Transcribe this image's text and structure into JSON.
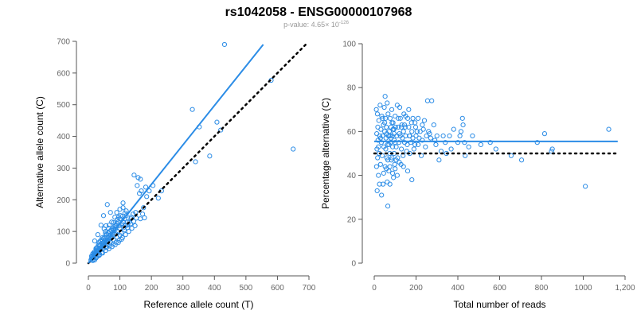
{
  "header": {
    "title": "rs1042058 - ENSG00000107968",
    "pvalue_prefix": "p-value: 4.65× 10",
    "pvalue_exp": "-126"
  },
  "colors": {
    "accent": "#2b8ce6",
    "reference": "#000000"
  },
  "chart_data": [
    {
      "type": "scatter",
      "xlabel": "Reference allele count (T)",
      "ylabel": "Alternative allele count (C)",
      "xlim": [
        0,
        700
      ],
      "ylim": [
        0,
        700
      ],
      "xticks": [
        0,
        100,
        200,
        300,
        400,
        500,
        600,
        700
      ],
      "xtick_labels": [
        "0",
        "100",
        "200",
        "300",
        "400",
        "500",
        "600",
        "700"
      ],
      "yticks": [
        0,
        100,
        200,
        300,
        400,
        500,
        600,
        700
      ],
      "ytick_labels": [
        "0",
        "100",
        "200",
        "300",
        "400",
        "500",
        "600",
        "700"
      ],
      "fit_line": {
        "x": [
          0,
          555
        ],
        "y": [
          0,
          690
        ]
      },
      "reference_line": {
        "x": [
          0,
          690
        ],
        "y": [
          0,
          690
        ]
      },
      "points": [
        [
          432,
          690
        ],
        [
          580,
          577
        ],
        [
          650,
          360
        ],
        [
          330,
          485
        ],
        [
          352,
          430
        ],
        [
          408,
          445
        ],
        [
          420,
          420
        ],
        [
          385,
          338
        ],
        [
          340,
          320
        ],
        [
          145,
          278
        ],
        [
          158,
          270
        ],
        [
          165,
          265
        ],
        [
          155,
          245
        ],
        [
          182,
          240
        ],
        [
          193,
          228
        ],
        [
          205,
          245
        ],
        [
          232,
          228
        ],
        [
          222,
          205
        ],
        [
          162,
          220
        ],
        [
          168,
          228
        ],
        [
          185,
          210
        ],
        [
          175,
          175
        ],
        [
          172,
          155
        ],
        [
          178,
          143
        ],
        [
          165,
          140
        ],
        [
          150,
          160
        ],
        [
          142,
          155
        ],
        [
          135,
          140
        ],
        [
          130,
          130
        ],
        [
          125,
          120
        ],
        [
          118,
          118
        ],
        [
          112,
          112
        ],
        [
          100,
          110
        ],
        [
          95,
          130
        ],
        [
          90,
          125
        ],
        [
          85,
          118
        ],
        [
          80,
          105
        ],
        [
          75,
          96
        ],
        [
          70,
          88
        ],
        [
          65,
          80
        ],
        [
          60,
          72
        ],
        [
          55,
          66
        ],
        [
          50,
          60
        ],
        [
          45,
          56
        ],
        [
          40,
          48
        ],
        [
          35,
          44
        ],
        [
          30,
          38
        ],
        [
          25,
          32
        ],
        [
          22,
          28
        ],
        [
          20,
          24
        ],
        [
          18,
          20
        ],
        [
          15,
          18
        ],
        [
          12,
          15
        ],
        [
          10,
          22
        ],
        [
          14,
          30
        ],
        [
          20,
          36
        ],
        [
          28,
          50
        ],
        [
          32,
          60
        ],
        [
          38,
          70
        ],
        [
          42,
          74
        ],
        [
          48,
          78
        ],
        [
          52,
          82
        ],
        [
          58,
          90
        ],
        [
          62,
          95
        ],
        [
          68,
          100
        ],
        [
          72,
          104
        ],
        [
          78,
          110
        ],
        [
          82,
          115
        ],
        [
          88,
          120
        ],
        [
          92,
          138
        ],
        [
          96,
          145
        ],
        [
          102,
          150
        ],
        [
          108,
          148
        ],
        [
          110,
          130
        ],
        [
          115,
          140
        ],
        [
          120,
          150
        ],
        [
          105,
          125
        ],
        [
          98,
          118
        ],
        [
          86,
          108
        ],
        [
          76,
          92
        ],
        [
          66,
          84
        ],
        [
          56,
          74
        ],
        [
          46,
          64
        ],
        [
          36,
          54
        ],
        [
          26,
          42
        ],
        [
          16,
          26
        ],
        [
          24,
          46
        ],
        [
          34,
          66
        ],
        [
          44,
          80
        ],
        [
          54,
          100
        ],
        [
          64,
          110
        ],
        [
          74,
          130
        ],
        [
          84,
          145
        ],
        [
          70,
          160
        ],
        [
          60,
          185
        ],
        [
          48,
          150
        ],
        [
          40,
          120
        ],
        [
          30,
          90
        ],
        [
          20,
          70
        ],
        [
          28,
          40
        ],
        [
          38,
          42
        ],
        [
          48,
          46
        ],
        [
          58,
          50
        ],
        [
          68,
          54
        ],
        [
          78,
          60
        ],
        [
          88,
          66
        ],
        [
          98,
          72
        ],
        [
          108,
          80
        ],
        [
          118,
          90
        ],
        [
          128,
          100
        ],
        [
          138,
          110
        ],
        [
          148,
          118
        ],
        [
          92,
          100
        ],
        [
          82,
          90
        ],
        [
          72,
          80
        ],
        [
          62,
          70
        ],
        [
          52,
          62
        ],
        [
          42,
          52
        ],
        [
          32,
          42
        ],
        [
          22,
          32
        ],
        [
          12,
          20
        ],
        [
          15,
          12
        ],
        [
          25,
          18
        ],
        [
          35,
          25
        ],
        [
          45,
          32
        ],
        [
          55,
          40
        ],
        [
          65,
          45
        ],
        [
          75,
          52
        ],
        [
          85,
          58
        ],
        [
          95,
          65
        ],
        [
          105,
          75
        ],
        [
          88,
          92
        ],
        [
          78,
          84
        ],
        [
          68,
          76
        ],
        [
          58,
          68
        ],
        [
          48,
          58
        ],
        [
          38,
          48
        ],
        [
          28,
          36
        ],
        [
          18,
          26
        ],
        [
          10,
          14
        ],
        [
          8,
          10
        ],
        [
          50,
          108
        ],
        [
          56,
          118
        ],
        [
          90,
          160
        ],
        [
          100,
          170
        ],
        [
          110,
          175
        ],
        [
          120,
          165
        ],
        [
          110,
          190
        ],
        [
          42,
          32
        ],
        [
          36,
          28
        ],
        [
          30,
          22
        ],
        [
          24,
          16
        ],
        [
          20,
          10
        ],
        [
          14,
          8
        ],
        [
          104,
          95
        ],
        [
          114,
          105
        ],
        [
          124,
          112
        ],
        [
          134,
          124
        ],
        [
          144,
          132
        ],
        [
          152,
          142
        ],
        [
          60,
          58
        ],
        [
          70,
          66
        ],
        [
          80,
          74
        ],
        [
          90,
          82
        ],
        [
          100,
          88
        ],
        [
          80,
          128
        ],
        [
          66,
          120
        ],
        [
          54,
          92
        ],
        [
          44,
          70
        ],
        [
          34,
          56
        ],
        [
          26,
          48
        ],
        [
          18,
          34
        ],
        [
          100,
          140
        ],
        [
          124,
          130
        ],
        [
          136,
          145
        ],
        [
          116,
          158
        ]
      ]
    },
    {
      "type": "scatter",
      "xlabel": "Total number of reads",
      "ylabel": "Percentage alternative (C)",
      "xlim": [
        0,
        1200
      ],
      "ylim": [
        0,
        100
      ],
      "xticks": [
        0,
        200,
        400,
        600,
        800,
        1000,
        1200
      ],
      "xtick_labels": [
        "0",
        "200",
        "400",
        "600",
        "800",
        "1000",
        "1,200"
      ],
      "yticks": [
        0,
        20,
        40,
        60,
        80,
        100
      ],
      "ytick_labels": [
        "0",
        "20",
        "40",
        "60",
        "80",
        "100"
      ],
      "fit_line": {
        "x": [
          0,
          1165
        ],
        "y": [
          55.5,
          55.5
        ]
      },
      "reference_line": {
        "x": [
          0,
          1165
        ],
        "y": [
          50,
          50
        ]
      },
      "points": [
        [
          1122,
          61
        ],
        [
          1010,
          35
        ],
        [
          848,
          51
        ],
        [
          852,
          52
        ],
        [
          815,
          59
        ],
        [
          780,
          55
        ],
        [
          705,
          47
        ],
        [
          655,
          49
        ],
        [
          582,
          52
        ],
        [
          555,
          55
        ],
        [
          510,
          54
        ],
        [
          470,
          58
        ],
        [
          452,
          53
        ],
        [
          435,
          49
        ],
        [
          432,
          55
        ],
        [
          425,
          63
        ],
        [
          422,
          66
        ],
        [
          415,
          60
        ],
        [
          410,
          58
        ],
        [
          400,
          55
        ],
        [
          368,
          52
        ],
        [
          360,
          58
        ],
        [
          345,
          50
        ],
        [
          340,
          55
        ],
        [
          320,
          51
        ],
        [
          310,
          47
        ],
        [
          300,
          58
        ],
        [
          295,
          54
        ],
        [
          285,
          63
        ],
        [
          275,
          74
        ],
        [
          270,
          57
        ],
        [
          265,
          59
        ],
        [
          255,
          74
        ],
        [
          250,
          58
        ],
        [
          245,
          53
        ],
        [
          240,
          65
        ],
        [
          235,
          61
        ],
        [
          230,
          56
        ],
        [
          225,
          49
        ],
        [
          220,
          60
        ],
        [
          215,
          57
        ],
        [
          210,
          54
        ],
        [
          205,
          60
        ],
        [
          200,
          58
        ],
        [
          198,
          62
        ],
        [
          195,
          54
        ],
        [
          190,
          52
        ],
        [
          185,
          57
        ],
        [
          180,
          60
        ],
        [
          178,
          64
        ],
        [
          175,
          55
        ],
        [
          170,
          50
        ],
        [
          168,
          58
        ],
        [
          165,
          62
        ],
        [
          160,
          66
        ],
        [
          158,
          54
        ],
        [
          155,
          51
        ],
        [
          150,
          58
        ],
        [
          148,
          62
        ],
        [
          145,
          55
        ],
        [
          142,
          68
        ],
        [
          140,
          60
        ],
        [
          138,
          49
        ],
        [
          135,
          57
        ],
        [
          132,
          63
        ],
        [
          130,
          52
        ],
        [
          128,
          45
        ],
        [
          125,
          66
        ],
        [
          122,
          71
        ],
        [
          120,
          59
        ],
        [
          118,
          55
        ],
        [
          115,
          62
        ],
        [
          112,
          48
        ],
        [
          110,
          72
        ],
        [
          108,
          58
        ],
        [
          105,
          53
        ],
        [
          102,
          62
        ],
        [
          100,
          67
        ],
        [
          98,
          45
        ],
        [
          96,
          56
        ],
        [
          94,
          61
        ],
        [
          92,
          39
        ],
        [
          90,
          64
        ],
        [
          88,
          53
        ],
        [
          86,
          58
        ],
        [
          84,
          70
        ],
        [
          82,
          47
        ],
        [
          80,
          62
        ],
        [
          78,
          55
        ],
        [
          76,
          66
        ],
        [
          74,
          50
        ],
        [
          72,
          60
        ],
        [
          70,
          42
        ],
        [
          68,
          58
        ],
        [
          66,
          68
        ],
        [
          64,
          54
        ],
        [
          62,
          73
        ],
        [
          60,
          48
        ],
        [
          58,
          62
        ],
        [
          56,
          57
        ],
        [
          54,
          66
        ],
        [
          52,
          44
        ],
        [
          50,
          60
        ],
        [
          48,
          71
        ],
        [
          46,
          53
        ],
        [
          44,
          63
        ],
        [
          42,
          36
        ],
        [
          40,
          58
        ],
        [
          38,
          49
        ],
        [
          36,
          67
        ],
        [
          34,
          55
        ],
        [
          32,
          61
        ],
        [
          30,
          45
        ],
        [
          28,
          72
        ],
        [
          26,
          58
        ],
        [
          24,
          50
        ],
        [
          22,
          65
        ],
        [
          20,
          40
        ],
        [
          18,
          56
        ],
        [
          17,
          62
        ],
        [
          16,
          48
        ],
        [
          15,
          68
        ],
        [
          14,
          33
        ],
        [
          13,
          52
        ],
        [
          12,
          59
        ],
        [
          11,
          44
        ],
        [
          10,
          70
        ],
        [
          52,
          76
        ],
        [
          65,
          26
        ],
        [
          62,
          37
        ],
        [
          45,
          41
        ],
        [
          58,
          43
        ],
        [
          75,
          36
        ],
        [
          35,
          31
        ],
        [
          25,
          36
        ],
        [
          110,
          40
        ],
        [
          140,
          44
        ],
        [
          160,
          42
        ],
        [
          180,
          38
        ],
        [
          95,
          50
        ],
        [
          85,
          48
        ],
        [
          105,
          47
        ],
        [
          120,
          46
        ],
        [
          130,
          62
        ],
        [
          150,
          67
        ],
        [
          165,
          70
        ],
        [
          185,
          66
        ],
        [
          75,
          58
        ],
        [
          85,
          64
        ],
        [
          95,
          59
        ],
        [
          115,
          66
        ],
        [
          125,
          58
        ],
        [
          145,
          63
        ],
        [
          170,
          58
        ],
        [
          195,
          64
        ],
        [
          210,
          66
        ],
        [
          230,
          63
        ],
        [
          260,
          60
        ],
        [
          290,
          56
        ],
        [
          330,
          58
        ],
        [
          380,
          61
        ],
        [
          60,
          59
        ],
        [
          70,
          54
        ],
        [
          80,
          57
        ],
        [
          90,
          61
        ],
        [
          100,
          55
        ],
        [
          50,
          64
        ],
        [
          40,
          66
        ],
        [
          30,
          57
        ],
        [
          20,
          53
        ],
        [
          55,
          52
        ],
        [
          65,
          47
        ],
        [
          75,
          44
        ],
        [
          88,
          41
        ],
        [
          100,
          43
        ]
      ]
    }
  ]
}
